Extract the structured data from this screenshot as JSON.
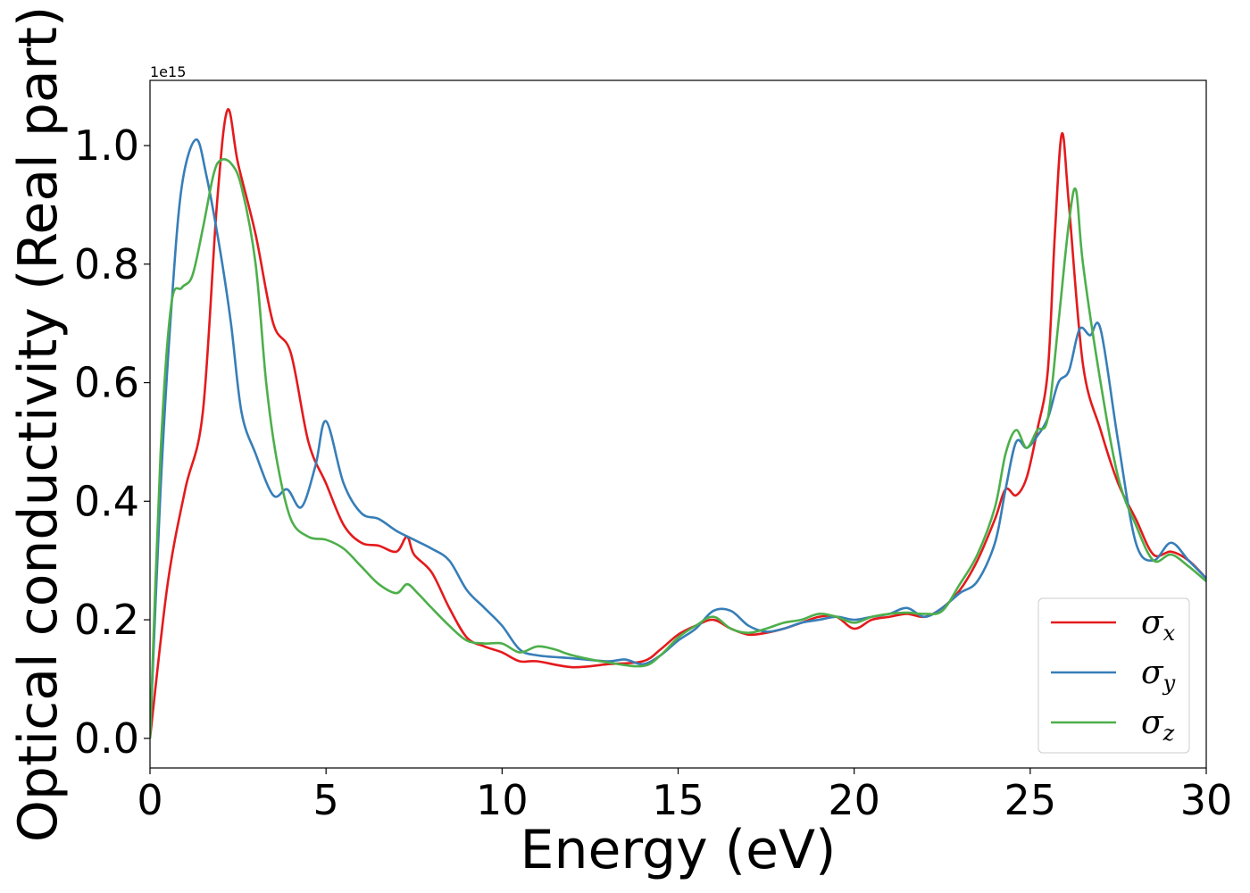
{
  "chart_data": {
    "type": "line",
    "title": "",
    "xlabel": "Energy (eV)",
    "ylabel": "Optical conductivity (Real part)",
    "y_offset_text": "1e15",
    "xlim": [
      0,
      30
    ],
    "ylim": [
      -0.05,
      1.11
    ],
    "x_ticks": [
      0,
      5,
      10,
      15,
      20,
      25,
      30
    ],
    "x_tick_labels": [
      "0",
      "5",
      "10",
      "15",
      "20",
      "25",
      "30"
    ],
    "y_ticks": [
      0.0,
      0.2,
      0.4,
      0.6,
      0.8,
      1.0
    ],
    "y_tick_labels": [
      "0.0",
      "0.2",
      "0.4",
      "0.6",
      "0.8",
      "1.0"
    ],
    "grid": false,
    "legend_position": "lower-right",
    "series": [
      {
        "name": "σx",
        "symbol": "σ",
        "subscript": "x",
        "color": "#e41a1c",
        "x": [
          0,
          0.5,
          1.0,
          1.5,
          1.9,
          2.2,
          2.5,
          3.0,
          3.5,
          4.0,
          4.5,
          5.0,
          5.5,
          6.0,
          6.5,
          7.0,
          7.3,
          7.5,
          8.0,
          8.5,
          9.0,
          9.5,
          10.0,
          10.5,
          11.0,
          12.0,
          13.0,
          14.0,
          14.5,
          15.0,
          15.5,
          16.0,
          16.5,
          17.0,
          17.5,
          18.0,
          18.5,
          19.0,
          19.5,
          20.0,
          20.5,
          21.0,
          21.5,
          22.0,
          22.5,
          23.0,
          23.5,
          24.0,
          24.3,
          24.6,
          24.9,
          25.2,
          25.5,
          25.7,
          25.9,
          26.1,
          26.5,
          27.0,
          27.5,
          28.0,
          28.5,
          29.0,
          29.5,
          30.0
        ],
        "y": [
          0.0,
          0.26,
          0.42,
          0.55,
          0.9,
          1.06,
          0.97,
          0.85,
          0.7,
          0.65,
          0.5,
          0.43,
          0.36,
          0.33,
          0.325,
          0.315,
          0.34,
          0.31,
          0.28,
          0.22,
          0.17,
          0.155,
          0.145,
          0.13,
          0.13,
          0.12,
          0.125,
          0.13,
          0.15,
          0.175,
          0.19,
          0.2,
          0.185,
          0.175,
          0.178,
          0.185,
          0.195,
          0.205,
          0.205,
          0.185,
          0.2,
          0.205,
          0.21,
          0.205,
          0.22,
          0.25,
          0.3,
          0.37,
          0.42,
          0.41,
          0.44,
          0.52,
          0.62,
          0.85,
          1.02,
          0.9,
          0.63,
          0.52,
          0.43,
          0.37,
          0.31,
          0.315,
          0.3,
          0.27
        ]
      },
      {
        "name": "σy",
        "symbol": "σ",
        "subscript": "y",
        "color": "#377eb8",
        "x": [
          0,
          0.3,
          0.6,
          0.9,
          1.3,
          1.6,
          2.0,
          2.3,
          2.6,
          3.0,
          3.5,
          3.9,
          4.3,
          4.7,
          5.0,
          5.5,
          6.0,
          6.5,
          7.0,
          7.5,
          8.0,
          8.5,
          9.0,
          9.5,
          10.0,
          10.5,
          11.0,
          12.0,
          13.0,
          13.5,
          14.0,
          14.5,
          15.0,
          15.5,
          16.0,
          16.5,
          17.0,
          17.5,
          18.0,
          18.5,
          19.0,
          19.5,
          20.0,
          20.5,
          21.0,
          21.5,
          22.0,
          22.5,
          23.0,
          23.5,
          24.0,
          24.3,
          24.6,
          24.9,
          25.2,
          25.5,
          25.8,
          26.1,
          26.4,
          26.7,
          27.0,
          27.5,
          28.0,
          28.5,
          29.0,
          29.5,
          30.0
        ],
        "y": [
          0.0,
          0.42,
          0.72,
          0.93,
          1.01,
          0.95,
          0.82,
          0.7,
          0.55,
          0.48,
          0.41,
          0.42,
          0.39,
          0.46,
          0.535,
          0.43,
          0.38,
          0.37,
          0.35,
          0.335,
          0.32,
          0.3,
          0.25,
          0.22,
          0.19,
          0.15,
          0.14,
          0.135,
          0.13,
          0.133,
          0.125,
          0.14,
          0.165,
          0.185,
          0.215,
          0.215,
          0.19,
          0.18,
          0.185,
          0.195,
          0.2,
          0.205,
          0.2,
          0.205,
          0.21,
          0.22,
          0.205,
          0.22,
          0.245,
          0.265,
          0.33,
          0.42,
          0.5,
          0.49,
          0.51,
          0.54,
          0.6,
          0.62,
          0.69,
          0.68,
          0.69,
          0.5,
          0.33,
          0.3,
          0.33,
          0.3,
          0.27
        ]
      },
      {
        "name": "σz",
        "symbol": "σ",
        "subscript": "z",
        "color": "#4daf4a",
        "x": [
          0,
          0.3,
          0.6,
          0.9,
          1.2,
          1.5,
          1.8,
          2.0,
          2.3,
          2.6,
          3.0,
          3.3,
          3.6,
          4.0,
          4.5,
          5.0,
          5.5,
          6.0,
          6.5,
          7.0,
          7.3,
          7.6,
          8.0,
          8.5,
          9.0,
          9.5,
          10.0,
          10.5,
          11.0,
          11.5,
          12.0,
          13.0,
          14.0,
          14.5,
          15.0,
          15.5,
          16.0,
          16.5,
          17.0,
          17.5,
          18.0,
          18.5,
          19.0,
          19.5,
          20.0,
          20.5,
          21.0,
          21.5,
          22.0,
          22.5,
          23.0,
          23.5,
          24.0,
          24.3,
          24.6,
          24.9,
          25.2,
          25.5,
          25.8,
          26.1,
          26.3,
          26.5,
          27.0,
          27.5,
          28.0,
          28.5,
          29.0,
          29.5,
          30.0
        ],
        "y": [
          0.0,
          0.48,
          0.73,
          0.76,
          0.78,
          0.86,
          0.95,
          0.975,
          0.97,
          0.93,
          0.8,
          0.6,
          0.47,
          0.37,
          0.34,
          0.335,
          0.32,
          0.29,
          0.26,
          0.245,
          0.26,
          0.245,
          0.22,
          0.19,
          0.165,
          0.16,
          0.16,
          0.145,
          0.155,
          0.15,
          0.14,
          0.128,
          0.122,
          0.14,
          0.17,
          0.19,
          0.205,
          0.185,
          0.178,
          0.185,
          0.195,
          0.2,
          0.21,
          0.205,
          0.195,
          0.205,
          0.21,
          0.212,
          0.21,
          0.215,
          0.26,
          0.31,
          0.39,
          0.48,
          0.52,
          0.49,
          0.52,
          0.54,
          0.7,
          0.87,
          0.925,
          0.8,
          0.6,
          0.44,
          0.36,
          0.3,
          0.31,
          0.29,
          0.265
        ]
      }
    ]
  }
}
